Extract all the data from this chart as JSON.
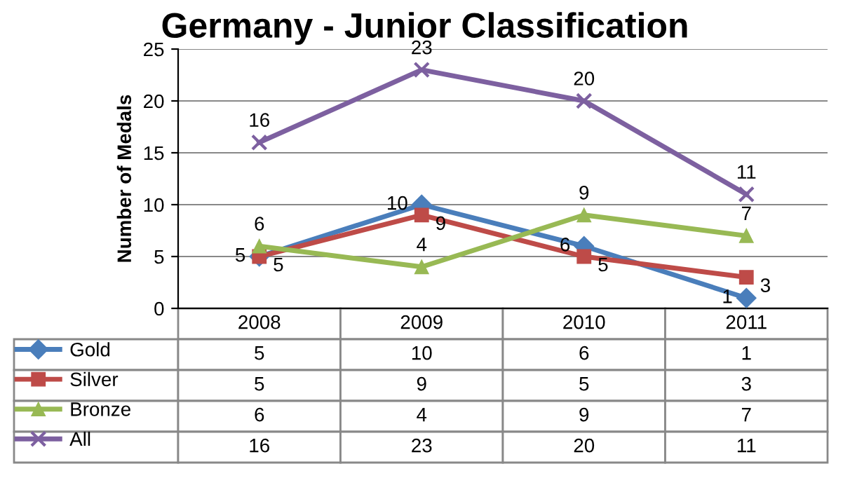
{
  "chart_data": {
    "type": "line",
    "title": "Germany - Junior Classification",
    "ylabel": "Number of Medals",
    "categories": [
      "2008",
      "2009",
      "2010",
      "2011"
    ],
    "series": [
      {
        "name": "Gold",
        "color": "#4a7ebb",
        "marker": "diamond",
        "values": [
          5,
          10,
          6,
          1
        ]
      },
      {
        "name": "Silver",
        "color": "#be4b48",
        "marker": "square",
        "values": [
          5,
          9,
          5,
          3
        ]
      },
      {
        "name": "Bronze",
        "color": "#98b954",
        "marker": "triangle",
        "values": [
          6,
          4,
          9,
          7
        ]
      },
      {
        "name": "All",
        "color": "#7d60a0",
        "marker": "cross",
        "values": [
          16,
          23,
          20,
          11
        ]
      }
    ],
    "annotations": [
      {
        "text": "5",
        "x": "2008",
        "y": 5
      },
      {
        "text": "10",
        "x": "2009",
        "y": 10
      },
      {
        "text": "6",
        "x": "2010",
        "y": 6
      },
      {
        "text": "1",
        "x": "2011",
        "y": 1
      },
      {
        "text": "5",
        "x": "2008",
        "y": 5
      },
      {
        "text": "9",
        "x": "2009",
        "y": 9
      },
      {
        "text": "5",
        "x": "2010",
        "y": 5
      },
      {
        "text": "3",
        "x": "2011",
        "y": 3
      },
      {
        "text": "6",
        "x": "2008",
        "y": 6
      },
      {
        "text": "4",
        "x": "2009",
        "y": 4
      },
      {
        "text": "9",
        "x": "2010",
        "y": 9
      },
      {
        "text": "7",
        "x": "2011",
        "y": 7
      },
      {
        "text": "16",
        "x": "2008",
        "y": 16
      },
      {
        "text": "23",
        "x": "2009",
        "y": 23
      },
      {
        "text": "20",
        "x": "2010",
        "y": 20
      },
      {
        "text": "11",
        "x": "2011",
        "y": 11
      }
    ],
    "ylim": [
      0,
      25
    ],
    "yticks": [
      0,
      5,
      10,
      15,
      20,
      25
    ],
    "grid": "y",
    "legend": "bottom",
    "data_labels": true,
    "tick_labels": "y",
    "line_style": "solid"
  }
}
